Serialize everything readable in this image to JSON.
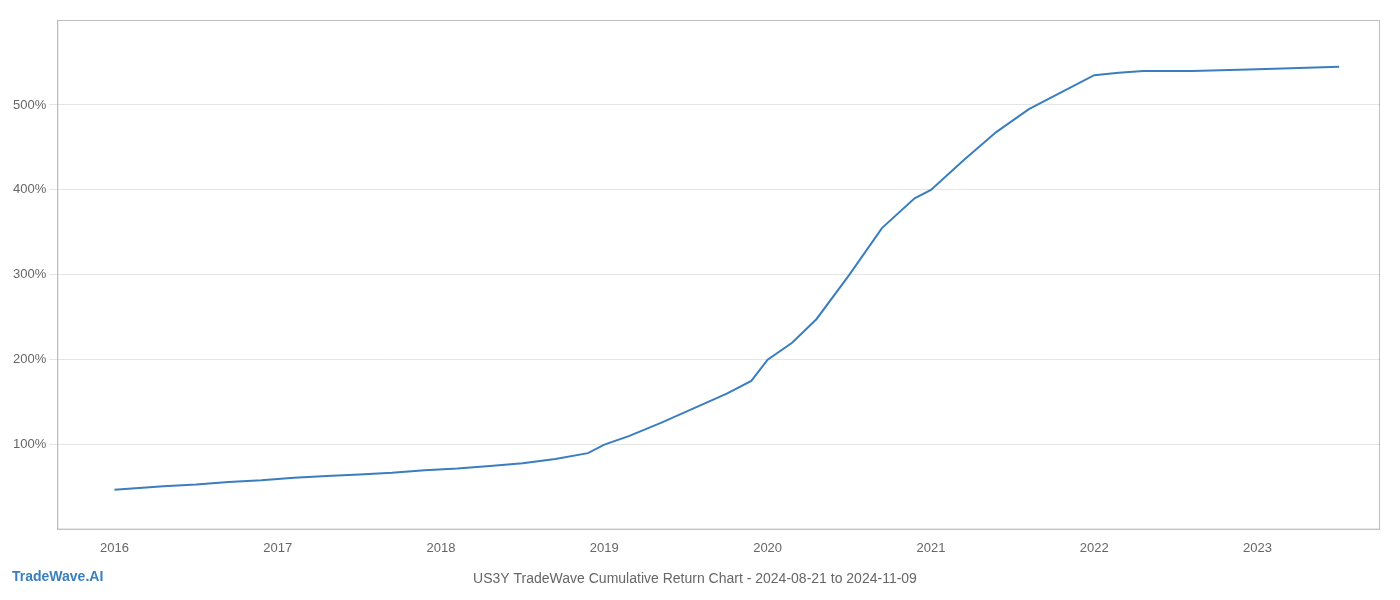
{
  "chart_data": {
    "type": "line",
    "title": "US3Y TradeWave Cumulative Return Chart - 2024-08-21 to 2024-11-09",
    "annotations": [
      {
        "text": "TradeWave.AI",
        "color": "#3a7ebf"
      }
    ],
    "x": [
      2016.0,
      2016.15,
      2016.3,
      2016.5,
      2016.7,
      2016.9,
      2017.1,
      2017.3,
      2017.5,
      2017.7,
      2017.9,
      2018.1,
      2018.3,
      2018.5,
      2018.7,
      2018.9,
      2019.0,
      2019.15,
      2019.35,
      2019.55,
      2019.75,
      2019.9,
      2020.0,
      2020.15,
      2020.3,
      2020.5,
      2020.7,
      2020.9,
      2021.0,
      2021.2,
      2021.4,
      2021.6,
      2021.8,
      2022.0,
      2022.15,
      2022.3,
      2022.6,
      2023.0,
      2023.5
    ],
    "values": [
      47,
      49,
      51,
      53,
      56,
      58,
      61,
      63,
      65,
      67,
      70,
      72,
      75,
      78,
      83,
      90,
      100,
      110,
      126,
      143,
      160,
      175,
      200,
      220,
      248,
      300,
      355,
      390,
      400,
      435,
      468,
      495,
      515,
      535,
      538,
      540,
      540,
      542,
      545
    ],
    "color": "#3a7ebf",
    "xlim": [
      2015.65,
      2023.75
    ],
    "ylim": [
      0,
      600
    ],
    "xticks": [
      2016,
      2017,
      2018,
      2019,
      2020,
      2021,
      2022,
      2023
    ],
    "yticks": [
      {
        "value": 100,
        "label": "100%"
      },
      {
        "value": 200,
        "label": "200%"
      },
      {
        "value": 300,
        "label": "300%"
      },
      {
        "value": 400,
        "label": "400%"
      },
      {
        "value": 500,
        "label": "500%"
      }
    ],
    "grid": "y"
  }
}
